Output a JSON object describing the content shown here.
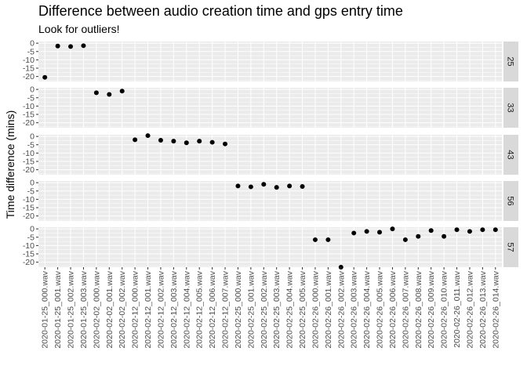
{
  "chart_data": {
    "type": "scatter",
    "title": "Difference between audio creation time and gps entry time",
    "subtitle": "Look for outliers!",
    "ylabel": "Time difference (mins)",
    "xlabel": "",
    "ylim": [
      -23,
      1
    ],
    "yticks": [
      0,
      -5,
      -10,
      -15,
      -20
    ],
    "grid": true,
    "categories": [
      "2020-01-25_000.wav",
      "2020-01-25_001.wav",
      "2020-01-25_002.wav",
      "2020-01-25_003.wav",
      "2020-02-02_000.wav",
      "2020-02-02_001.wav",
      "2020-02-02_002.wav",
      "2020-02-12_000.wav",
      "2020-02-12_001.wav",
      "2020-02-12_002.wav",
      "2020-02-12_003.wav",
      "2020-02-12_004.wav",
      "2020-02-12_005.wav",
      "2020-02-12_006.wav",
      "2020-02-12_007.wav",
      "2020-02-25_000.wav",
      "2020-02-25_001.wav",
      "2020-02-25_002.wav",
      "2020-02-25_003.wav",
      "2020-02-25_004.wav",
      "2020-02-25_005.wav",
      "2020-02-26_000.wav",
      "2020-02-26_001.wav",
      "2020-02-26_002.wav",
      "2020-02-26_003.wav",
      "2020-02-26_004.wav",
      "2020-02-26_005.wav",
      "2020-02-26_006.wav",
      "2020-02-26_007.wav",
      "2020-02-26_008.wav",
      "2020-02-26_009.wav",
      "2020-02-26_010.wav",
      "2020-02-26_011.wav",
      "2020-02-26_012.wav",
      "2020-02-26_013.wav",
      "2020-02-26_014.wav"
    ],
    "panels": [
      {
        "label": "25",
        "points": [
          {
            "x": "2020-01-25_000.wav",
            "y": -20.5
          },
          {
            "x": "2020-01-25_001.wav",
            "y": -1.7
          },
          {
            "x": "2020-01-25_002.wav",
            "y": -2.0
          },
          {
            "x": "2020-01-25_003.wav",
            "y": -1.5
          }
        ]
      },
      {
        "label": "33",
        "points": [
          {
            "x": "2020-02-02_000.wav",
            "y": -2.0
          },
          {
            "x": "2020-02-02_001.wav",
            "y": -3.0
          },
          {
            "x": "2020-02-02_002.wav",
            "y": -1.0
          }
        ]
      },
      {
        "label": "43",
        "points": [
          {
            "x": "2020-02-12_000.wav",
            "y": -2.0
          },
          {
            "x": "2020-02-12_001.wav",
            "y": 0.5
          },
          {
            "x": "2020-02-12_002.wav",
            "y": -2.3
          },
          {
            "x": "2020-02-12_003.wav",
            "y": -2.8
          },
          {
            "x": "2020-02-12_004.wav",
            "y": -3.8
          },
          {
            "x": "2020-02-12_005.wav",
            "y": -2.8
          },
          {
            "x": "2020-02-12_006.wav",
            "y": -3.5
          },
          {
            "x": "2020-02-12_007.wav",
            "y": -4.5
          }
        ]
      },
      {
        "label": "56",
        "points": [
          {
            "x": "2020-02-25_000.wav",
            "y": -2.0
          },
          {
            "x": "2020-02-25_001.wav",
            "y": -2.5
          },
          {
            "x": "2020-02-25_002.wav",
            "y": -1.0
          },
          {
            "x": "2020-02-25_003.wav",
            "y": -2.8
          },
          {
            "x": "2020-02-25_004.wav",
            "y": -2.0
          },
          {
            "x": "2020-02-25_005.wav",
            "y": -2.3
          }
        ]
      },
      {
        "label": "57",
        "points": [
          {
            "x": "2020-02-26_000.wav",
            "y": -6.5
          },
          {
            "x": "2020-02-26_001.wav",
            "y": -6.5
          },
          {
            "x": "2020-02-26_002.wav",
            "y": -23.0
          },
          {
            "x": "2020-02-26_003.wav",
            "y": -2.5
          },
          {
            "x": "2020-02-26_004.wav",
            "y": -1.5
          },
          {
            "x": "2020-02-26_005.wav",
            "y": -2.0
          },
          {
            "x": "2020-02-26_006.wav",
            "y": 0.0
          },
          {
            "x": "2020-02-26_007.wav",
            "y": -6.5
          },
          {
            "x": "2020-02-26_008.wav",
            "y": -4.5
          },
          {
            "x": "2020-02-26_009.wav",
            "y": -1.0
          },
          {
            "x": "2020-02-26_010.wav",
            "y": -4.5
          },
          {
            "x": "2020-02-26_011.wav",
            "y": -0.5
          },
          {
            "x": "2020-02-26_012.wav",
            "y": -1.5
          },
          {
            "x": "2020-02-26_013.wav",
            "y": -0.5
          },
          {
            "x": "2020-02-26_014.wav",
            "y": -0.5
          }
        ]
      }
    ],
    "colors": {
      "panel_background": "#ebebeb",
      "gridline": "#ffffff",
      "strip_background": "#d9d9d9",
      "point": "#000000",
      "tick_text": "#4d4d4d",
      "strip_text": "#1a1a1a"
    }
  }
}
